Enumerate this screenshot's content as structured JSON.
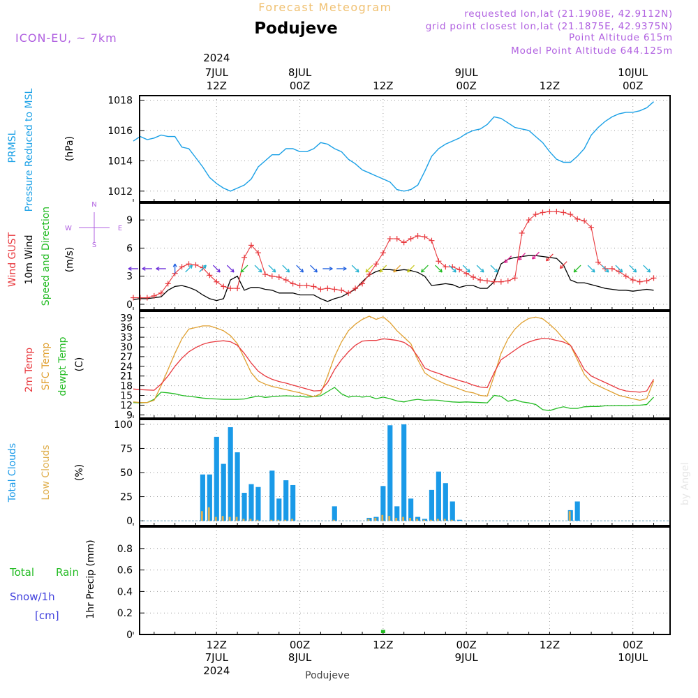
{
  "header": {
    "title": "Forecast Meteogram",
    "location": "Podujeve",
    "model": "ICON-EU, ~ 7km",
    "requested": "requested lon,lat (21.1908E, 42.9112N)",
    "gridpoint": "grid point closest lon,lat (21.1875E, 42.9375N)",
    "point_altitude": "Point Altitude 615m",
    "model_altitude": "Model Point Altitude 644.125m"
  },
  "time_axis": {
    "top": [
      {
        "line1": "2024",
        "line2": "7JUL",
        "line3": "12Z",
        "hour": 12
      },
      {
        "line1": "",
        "line2": "8JUL",
        "line3": "00Z",
        "hour": 24
      },
      {
        "line1": "",
        "line2": "",
        "line3": "12Z",
        "hour": 36
      },
      {
        "line1": "",
        "line2": "9JUL",
        "line3": "00Z",
        "hour": 48
      },
      {
        "line1": "",
        "line2": "",
        "line3": "12Z",
        "hour": 60
      },
      {
        "line1": "",
        "line2": "10JUL",
        "line3": "00Z",
        "hour": 72
      }
    ],
    "bottom": [
      {
        "line1": "12Z",
        "line2": "7JUL",
        "line3": "2024",
        "hour": 12
      },
      {
        "line1": "00Z",
        "line2": "8JUL",
        "line3": "",
        "hour": 24
      },
      {
        "line1": "12Z",
        "line2": "",
        "line3": "",
        "hour": 36
      },
      {
        "line1": "00Z",
        "line2": "9JUL",
        "line3": "",
        "hour": 48
      },
      {
        "line1": "12Z",
        "line2": "",
        "line3": "",
        "hour": 60
      },
      {
        "line1": "00Z",
        "line2": "10JUL",
        "line3": "",
        "hour": 72
      }
    ],
    "bottom_caption": "Podujeve",
    "watermark": "by Angel"
  },
  "colors": {
    "pressure": "#1aa0e6",
    "gust": "#e8373c",
    "wind": "#000000",
    "temp2m": "#e8373c",
    "sfc": "#e0a030",
    "dewpt": "#22bb22",
    "total_cloud": "#1a9ae8",
    "low_cloud": "#e0b050",
    "rain": "#22bb22",
    "snow": "#4040dd",
    "label_purple": "#b060e0",
    "title_orange": "#f0c070"
  },
  "chart_data": [
    {
      "name": "pressure",
      "type": "line",
      "ylabel": [
        "PRMSL",
        "Pressure Reduced to MSL",
        "(hPa)"
      ],
      "ylim": [
        1011.3,
        1018.3
      ],
      "yticks": [
        1012,
        1014,
        1016,
        1018
      ],
      "x_hours": [
        0,
        1,
        2,
        3,
        4,
        5,
        6,
        7,
        8,
        9,
        10,
        11,
        12,
        13,
        14,
        15,
        16,
        17,
        18,
        19,
        20,
        21,
        22,
        23,
        24,
        25,
        26,
        27,
        28,
        29,
        30,
        31,
        32,
        33,
        34,
        35,
        36,
        37,
        38,
        39,
        40,
        41,
        42,
        43,
        44,
        45,
        46,
        47,
        48,
        49,
        50,
        51,
        52,
        53,
        54,
        55,
        56,
        57,
        58,
        59,
        60,
        61,
        62,
        63,
        64,
        65,
        66,
        67,
        68,
        69,
        70,
        71,
        72,
        73,
        74,
        75
      ],
      "values": [
        1015.3,
        1015.6,
        1015.4,
        1015.5,
        1015.7,
        1015.6,
        1015.6,
        1014.9,
        1014.8,
        1014.2,
        1013.6,
        1012.9,
        1012.5,
        1012.2,
        1012.0,
        1012.2,
        1012.4,
        1012.8,
        1013.6,
        1014.0,
        1014.4,
        1014.4,
        1014.8,
        1014.8,
        1014.6,
        1014.6,
        1014.8,
        1015.2,
        1015.1,
        1014.8,
        1014.6,
        1014.1,
        1013.8,
        1013.4,
        1013.2,
        1013.0,
        1012.8,
        1012.6,
        1012.1,
        1012.0,
        1012.1,
        1012.4,
        1013.3,
        1014.3,
        1014.8,
        1015.1,
        1015.3,
        1015.5,
        1015.8,
        1016.0,
        1016.1,
        1016.4,
        1016.9,
        1016.8,
        1016.5,
        1016.2,
        1016.1,
        1016.0,
        1015.6,
        1015.2,
        1014.6,
        1014.1,
        1013.9,
        1013.9,
        1014.3,
        1014.8,
        1015.7,
        1016.2,
        1016.6,
        1016.9,
        1017.1,
        1017.2,
        1017.2,
        1017.3,
        1017.5,
        1017.9
      ]
    },
    {
      "name": "wind",
      "type": "line",
      "ylabel": [
        "Wind GUST",
        "10m Wind",
        "Speed and Direction",
        "(m/s)"
      ],
      "compass": {
        "n": "N",
        "s": "S",
        "w": "W",
        "e": "E"
      },
      "ylim": [
        -0.6,
        10.8
      ],
      "yticks": [
        0,
        3,
        6,
        9
      ],
      "x_hours": [
        0,
        1,
        2,
        3,
        4,
        5,
        6,
        7,
        8,
        9,
        10,
        11,
        12,
        13,
        14,
        15,
        16,
        17,
        18,
        19,
        20,
        21,
        22,
        23,
        24,
        25,
        26,
        27,
        28,
        29,
        30,
        31,
        32,
        33,
        34,
        35,
        36,
        37,
        38,
        39,
        40,
        41,
        42,
        43,
        44,
        45,
        46,
        47,
        48,
        49,
        50,
        51,
        52,
        53,
        54,
        55,
        56,
        57,
        58,
        59,
        60,
        61,
        62,
        63,
        64,
        65,
        66,
        67,
        68,
        69,
        70,
        71,
        72,
        73,
        74,
        75
      ],
      "gust": [
        0.7,
        0.7,
        0.7,
        0.9,
        1.2,
        2.2,
        3.3,
        4.0,
        4.3,
        4.2,
        3.9,
        3.1,
        2.4,
        1.9,
        1.7,
        1.7,
        5.0,
        6.3,
        5.5,
        3.2,
        3.0,
        2.9,
        2.6,
        2.2,
        2.0,
        2.0,
        1.9,
        1.6,
        1.7,
        1.6,
        1.5,
        1.2,
        1.7,
        2.2,
        3.2,
        4.3,
        5.5,
        7.0,
        7.0,
        6.6,
        7.0,
        7.3,
        7.2,
        6.8,
        4.6,
        4.0,
        4.0,
        3.7,
        3.3,
        2.9,
        2.6,
        2.5,
        2.4,
        2.4,
        2.5,
        2.8,
        7.6,
        9.0,
        9.6,
        9.8,
        9.9,
        9.9,
        9.8,
        9.6,
        9.1,
        8.9,
        8.2,
        4.5,
        3.8,
        3.8,
        3.5,
        3.0,
        2.6,
        2.4,
        2.5,
        2.8
      ],
      "speed": [
        0.5,
        0.6,
        0.6,
        0.7,
        0.8,
        1.5,
        1.9,
        2.0,
        1.8,
        1.5,
        1.0,
        0.6,
        0.4,
        0.6,
        2.6,
        3.0,
        1.5,
        1.8,
        1.8,
        1.6,
        1.5,
        1.2,
        1.2,
        1.2,
        1.0,
        1.0,
        1.0,
        0.6,
        0.3,
        0.6,
        0.8,
        1.2,
        1.6,
        2.4,
        3.1,
        3.5,
        3.7,
        3.7,
        3.6,
        3.7,
        3.6,
        3.4,
        3.0,
        2.0,
        2.1,
        2.2,
        2.1,
        1.8,
        2.0,
        2.0,
        1.7,
        1.7,
        2.4,
        4.3,
        4.8,
        5.0,
        5.1,
        5.2,
        5.2,
        5.1,
        5.0,
        4.9,
        4.2,
        2.6,
        2.3,
        2.3,
        2.1,
        1.9,
        1.7,
        1.6,
        1.5,
        1.5,
        1.4,
        1.5,
        1.6,
        1.5
      ],
      "arrows": [
        {
          "hour": 0,
          "from": "E",
          "color": "#6a2ad8"
        },
        {
          "hour": 2,
          "from": "E",
          "color": "#6a2ad8"
        },
        {
          "hour": 4,
          "from": "E",
          "color": "#6a2ad8"
        },
        {
          "hour": 6,
          "from": "S",
          "color": "#2060e0"
        },
        {
          "hour": 8,
          "from": "SW",
          "color": "#20b0d0"
        },
        {
          "hour": 10,
          "from": "SW",
          "color": "#20b0d0"
        },
        {
          "hour": 12,
          "from": "NW",
          "color": "#6a2ad8"
        },
        {
          "hour": 14,
          "from": "NW",
          "color": "#6a2ad8"
        },
        {
          "hour": 16,
          "from": "NE",
          "color": "#22bb22"
        },
        {
          "hour": 18,
          "from": "NW",
          "color": "#20b0d0"
        },
        {
          "hour": 20,
          "from": "NW",
          "color": "#20b0d0"
        },
        {
          "hour": 22,
          "from": "NW",
          "color": "#20b0d0"
        },
        {
          "hour": 24,
          "from": "NW",
          "color": "#2060e0"
        },
        {
          "hour": 26,
          "from": "NW",
          "color": "#2060e0"
        },
        {
          "hour": 28,
          "from": "W",
          "color": "#2060e0"
        },
        {
          "hour": 30,
          "from": "W",
          "color": "#2060e0"
        },
        {
          "hour": 32,
          "from": "NW",
          "color": "#20b0d0"
        },
        {
          "hour": 34,
          "from": "NE",
          "color": "#c8c820"
        },
        {
          "hour": 36,
          "from": "NE",
          "color": "#c8c820"
        },
        {
          "hour": 38,
          "from": "NE",
          "color": "#e0a030"
        },
        {
          "hour": 40,
          "from": "NE",
          "color": "#c8c820"
        },
        {
          "hour": 42,
          "from": "NE",
          "color": "#22bb22"
        },
        {
          "hour": 44,
          "from": "NW",
          "color": "#22bb22"
        },
        {
          "hour": 46,
          "from": "NW",
          "color": "#20b0d0"
        },
        {
          "hour": 48,
          "from": "NW",
          "color": "#20b0d0"
        },
        {
          "hour": 50,
          "from": "NW",
          "color": "#20b0d0"
        },
        {
          "hour": 52,
          "from": "NW",
          "color": "#20b0d0"
        },
        {
          "hour": 54,
          "from": "NE",
          "color": "#e02090"
        },
        {
          "hour": 56,
          "from": "NE",
          "color": "#e02090"
        },
        {
          "hour": 58,
          "from": "NE",
          "color": "#e02090"
        },
        {
          "hour": 60,
          "from": "NE",
          "color": "#e8373c"
        },
        {
          "hour": 62,
          "from": "NE",
          "color": "#e8373c"
        },
        {
          "hour": 64,
          "from": "NE",
          "color": "#22bb22"
        },
        {
          "hour": 66,
          "from": "NW",
          "color": "#20b0d0"
        },
        {
          "hour": 68,
          "from": "NW",
          "color": "#20b0d0"
        },
        {
          "hour": 70,
          "from": "NW",
          "color": "#20b0d0"
        },
        {
          "hour": 72,
          "from": "NW",
          "color": "#20b0d0"
        },
        {
          "hour": 74,
          "from": "NW",
          "color": "#20b0d0"
        }
      ]
    },
    {
      "name": "temperature",
      "type": "line",
      "ylabel": [
        "2m Temp",
        "SFC Temp",
        "dewpt Temp",
        "(C)"
      ],
      "ylim": [
        8,
        41
      ],
      "yticks": [
        9,
        12,
        15,
        18,
        21,
        24,
        27,
        30,
        33,
        36,
        39
      ],
      "x_hours": [
        0,
        1,
        2,
        3,
        4,
        5,
        6,
        7,
        8,
        9,
        10,
        11,
        12,
        13,
        14,
        15,
        16,
        17,
        18,
        19,
        20,
        21,
        22,
        23,
        24,
        25,
        26,
        27,
        28,
        29,
        30,
        31,
        32,
        33,
        34,
        35,
        36,
        37,
        38,
        39,
        40,
        41,
        42,
        43,
        44,
        45,
        46,
        47,
        48,
        49,
        50,
        51,
        52,
        53,
        54,
        55,
        56,
        57,
        58,
        59,
        60,
        61,
        62,
        63,
        64,
        65,
        66,
        67,
        68,
        69,
        70,
        71,
        72,
        73,
        74,
        75
      ],
      "temp2m": [
        17.0,
        16.8,
        16.7,
        16.6,
        18.5,
        21.0,
        24.0,
        26.5,
        28.5,
        29.8,
        30.8,
        31.4,
        31.7,
        31.9,
        31.6,
        30.5,
        28.0,
        25.0,
        22.5,
        21.0,
        20.0,
        19.3,
        18.8,
        18.2,
        17.6,
        17.0,
        16.4,
        16.5,
        19.0,
        23.0,
        26.0,
        28.5,
        30.5,
        31.8,
        32.0,
        32.0,
        32.5,
        32.3,
        32.0,
        31.4,
        30.0,
        27.0,
        23.5,
        22.5,
        21.8,
        21.0,
        20.3,
        19.6,
        19.0,
        18.2,
        17.6,
        17.4,
        22.0,
        26.0,
        27.5,
        29.0,
        30.5,
        31.5,
        32.2,
        32.6,
        32.5,
        32.0,
        31.5,
        30.5,
        27.0,
        23.0,
        21.0,
        20.0,
        19.0,
        18.0,
        17.0,
        16.4,
        16.2,
        16.0,
        16.4,
        20.0
      ],
      "sfc": [
        13.0,
        12.8,
        12.8,
        13.5,
        18.0,
        23.0,
        28.0,
        32.5,
        35.5,
        36.0,
        36.5,
        36.5,
        35.8,
        35.0,
        33.5,
        31.0,
        26.5,
        22.0,
        19.5,
        18.5,
        17.8,
        17.3,
        16.8,
        16.3,
        15.8,
        15.2,
        14.6,
        15.5,
        21.0,
        27.0,
        31.5,
        35.0,
        37.0,
        38.5,
        39.5,
        38.5,
        39.3,
        37.5,
        35.0,
        33.0,
        31.0,
        26.0,
        22.0,
        20.5,
        19.5,
        18.5,
        17.8,
        17.0,
        16.2,
        15.8,
        15.0,
        14.8,
        21.0,
        28.0,
        32.5,
        35.5,
        37.5,
        38.8,
        39.2,
        38.7,
        37.0,
        35.0,
        32.5,
        30.5,
        26.0,
        21.5,
        19.0,
        18.0,
        17.0,
        16.0,
        15.0,
        14.5,
        14.0,
        13.5,
        14.0,
        19.5
      ],
      "dewpt": [
        12.8,
        12.7,
        12.8,
        13.8,
        16.0,
        15.8,
        15.5,
        15.0,
        14.7,
        14.5,
        14.2,
        14.0,
        13.9,
        13.8,
        13.8,
        13.8,
        13.9,
        14.4,
        14.8,
        14.4,
        14.6,
        14.8,
        14.9,
        14.8,
        14.7,
        14.5,
        14.6,
        14.9,
        16.2,
        17.5,
        15.5,
        14.5,
        14.8,
        14.5,
        14.7,
        14.0,
        14.5,
        14.0,
        13.3,
        13.0,
        13.5,
        13.8,
        13.5,
        13.6,
        13.5,
        13.2,
        13.0,
        12.9,
        13.0,
        12.9,
        12.8,
        12.7,
        15.0,
        14.7,
        13.2,
        13.7,
        13.0,
        12.7,
        12.2,
        10.6,
        10.3,
        11.0,
        11.5,
        11.0,
        11.0,
        11.5,
        11.6,
        11.6,
        11.8,
        11.8,
        11.9,
        11.8,
        12.0,
        12.0,
        12.2,
        14.5
      ]
    },
    {
      "name": "clouds",
      "type": "bar",
      "ylabel": [
        "Total Clouds",
        "Low Clouds",
        "(%)"
      ],
      "ylim": [
        -5,
        105
      ],
      "yticks": [
        0,
        25,
        50,
        75,
        100
      ],
      "x_hours": [
        10,
        11,
        12,
        13,
        14,
        15,
        16,
        17,
        18,
        20,
        21,
        22,
        23,
        29,
        34,
        35,
        36,
        37,
        38,
        39,
        40,
        41,
        42,
        43,
        44,
        45,
        46,
        47,
        63,
        64
      ],
      "total": [
        48,
        48,
        87,
        59,
        97,
        71,
        29,
        38,
        35,
        52,
        23,
        42,
        37,
        15,
        3,
        4,
        36,
        99,
        15,
        100,
        23,
        4,
        2,
        32,
        51,
        39,
        20,
        1,
        11,
        20
      ],
      "low": [
        10,
        14,
        4,
        5,
        4,
        4,
        2,
        2,
        1,
        1,
        1,
        1,
        2,
        1,
        2,
        3,
        6,
        5,
        3,
        4,
        3,
        2,
        1,
        1,
        2,
        2,
        1,
        0,
        10,
        0
      ]
    },
    {
      "name": "precip",
      "type": "bar",
      "ylabel": [
        "1hr Precip (mm)"
      ],
      "legend": {
        "rain_a": "Total",
        "rain_b": "Rain",
        "snow": "Snow/1h",
        "snow_unit": "[cm]"
      },
      "ylim": [
        0,
        1.0
      ],
      "yticks": [
        0,
        0.2,
        0.4,
        0.6,
        0.8
      ],
      "ytick_labels": [
        "0",
        "0.2",
        "0.4",
        "0.6",
        "0.8"
      ],
      "x_hours": [
        36
      ],
      "rain": [
        0.03
      ],
      "snow": [
        0
      ]
    }
  ]
}
